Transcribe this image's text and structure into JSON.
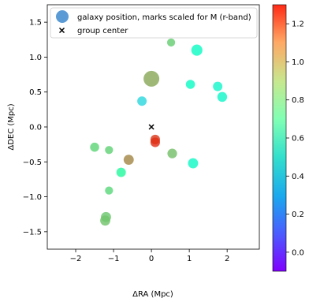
{
  "chart_data": {
    "type": "scatter",
    "xlabel": "ΔRA (Mpc)",
    "ylabel": "ΔDEC (Mpc)",
    "xlim": [
      -2.75,
      2.85
    ],
    "ylim": [
      -1.75,
      1.75
    ],
    "xticks": [
      -2,
      -1,
      0,
      1,
      2
    ],
    "yticks": [
      -1.5,
      -1.0,
      -0.5,
      0.0,
      0.5,
      1.0,
      1.5
    ],
    "ytick_labels": [
      "−1.5",
      "−1.0",
      "−0.5",
      "0.0",
      "0.5",
      "1.0",
      "1.5"
    ],
    "xtick_labels": [
      "−2",
      "−1",
      "0",
      "1",
      "2"
    ],
    "legend": {
      "location": "top-right",
      "entries": [
        {
          "label": "galaxy position, marks scaled for M (r-band)",
          "marker": "circle",
          "color": "#5b9bd5"
        },
        {
          "label": "group center",
          "marker": "x",
          "color": "#000000"
        }
      ]
    },
    "colorbar": {
      "colormap": "rainbow",
      "range": [
        -0.1,
        1.3
      ],
      "ticks": [
        0.0,
        0.2,
        0.4,
        0.6,
        0.8,
        1.0,
        1.2
      ],
      "tick_labels": [
        "0.0",
        "0.2",
        "0.4",
        "0.6",
        "0.8",
        "1.0",
        "1.2"
      ]
    },
    "group_center": {
      "x": 0.0,
      "y": 0.0
    },
    "points": [
      {
        "x": 0.0,
        "y": 0.69,
        "c": 0.98,
        "m": 1.0
      },
      {
        "x": 1.2,
        "y": 1.1,
        "c": 0.52,
        "m": 0.55
      },
      {
        "x": 0.52,
        "y": 1.21,
        "c": 0.88,
        "m": 0.25
      },
      {
        "x": 1.03,
        "y": 0.61,
        "c": 0.52,
        "m": 0.35
      },
      {
        "x": 1.75,
        "y": 0.58,
        "c": 0.48,
        "m": 0.38
      },
      {
        "x": 1.87,
        "y": 0.43,
        "c": 0.49,
        "m": 0.42
      },
      {
        "x": -0.25,
        "y": 0.37,
        "c": 0.35,
        "m": 0.38
      },
      {
        "x": 0.1,
        "y": -0.18,
        "c": 1.2,
        "m": 0.4
      },
      {
        "x": 0.1,
        "y": -0.22,
        "c": 1.22,
        "m": 0.4
      },
      {
        "x": 0.55,
        "y": -0.38,
        "c": 0.92,
        "m": 0.4
      },
      {
        "x": 1.1,
        "y": -0.52,
        "c": 0.5,
        "m": 0.45
      },
      {
        "x": -1.5,
        "y": -0.29,
        "c": 0.86,
        "m": 0.35
      },
      {
        "x": -1.12,
        "y": -0.33,
        "c": 0.87,
        "m": 0.25
      },
      {
        "x": -0.6,
        "y": -0.47,
        "c": 1.05,
        "m": 0.45
      },
      {
        "x": -0.8,
        "y": -0.65,
        "c": 0.7,
        "m": 0.38
      },
      {
        "x": -1.12,
        "y": -0.91,
        "c": 0.85,
        "m": 0.25
      },
      {
        "x": -1.2,
        "y": -1.29,
        "c": 0.9,
        "m": 0.45
      },
      {
        "x": -1.22,
        "y": -1.34,
        "c": 0.91,
        "m": 0.45
      }
    ]
  }
}
